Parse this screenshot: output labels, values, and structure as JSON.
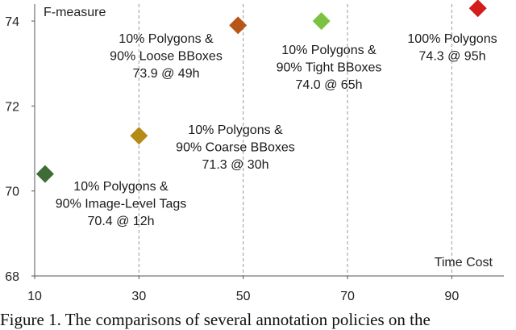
{
  "chart_data": {
    "type": "scatter",
    "ylabel": "F-measure",
    "xlabel": "Time Cost",
    "xlim": [
      10,
      100
    ],
    "ylim": [
      68,
      74.4
    ],
    "x_ticks": [
      10,
      30,
      50,
      70,
      90
    ],
    "y_ticks": [
      68,
      70,
      72,
      74
    ],
    "grid": "vertical-dashed",
    "points": [
      {
        "x": 12,
        "y": 70.4,
        "color": "#3f6b35",
        "label": [
          "10% Polygons &",
          "90% Image-Level Tags",
          "70.4 @ 12h"
        ]
      },
      {
        "x": 30,
        "y": 71.3,
        "color": "#b58a17",
        "label": [
          "10% Polygons &",
          "90% Coarse BBoxes",
          "71.3 @ 30h"
        ]
      },
      {
        "x": 49,
        "y": 73.9,
        "color": "#b8561a",
        "label": [
          "10% Polygons &",
          "90% Loose BBoxes",
          "73.9 @ 49h"
        ]
      },
      {
        "x": 65,
        "y": 74.0,
        "color": "#7cc242",
        "label": [
          "10% Polygons &",
          "90% Tight BBoxes",
          "74.0 @ 65h"
        ]
      },
      {
        "x": 95,
        "y": 74.3,
        "color": "#d41c1c",
        "label": [
          "100% Polygons",
          "74.3 @ 95h"
        ]
      }
    ]
  },
  "caption": "Figure 1.   The comparisons of several annotation policies on the"
}
